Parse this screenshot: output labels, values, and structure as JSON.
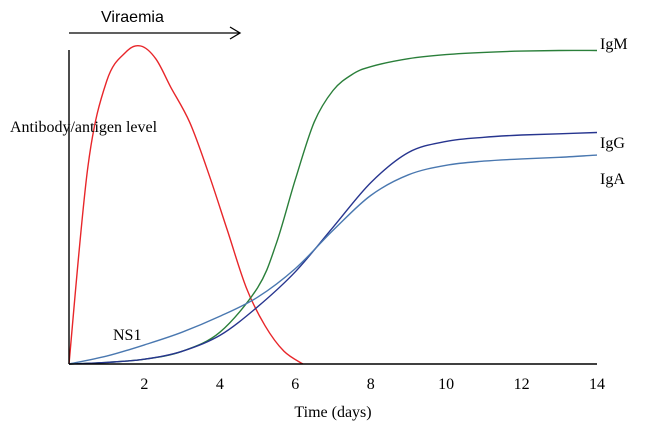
{
  "chart_data": {
    "type": "line",
    "title": "",
    "xlabel": "Time (days)",
    "ylabel": "Antibody/antigen level",
    "xlim": [
      0,
      14
    ],
    "ylim": [
      0,
      100
    ],
    "x_ticks": [
      "2",
      "4",
      "6",
      "8",
      "10",
      "12",
      "14"
    ],
    "grid": false,
    "legend": "labels at line ends",
    "annotation": {
      "text": "Viraemia",
      "from_day": 0,
      "to_day": 4.5
    },
    "series": [
      {
        "name": "NS1",
        "color": "#e8262a",
        "x": [
          0,
          0.5,
          1,
          1.5,
          1.9,
          2.3,
          2.7,
          3.2,
          3.7,
          4.2,
          4.7,
          5.2,
          5.7,
          6.2
        ],
        "y": [
          0,
          62,
          89,
          98,
          100,
          96,
          87,
          76,
          60,
          42,
          24,
          12,
          4,
          0
        ]
      },
      {
        "name": "IgM",
        "color": "#2a7f3a",
        "x": [
          0,
          1,
          2,
          3,
          4,
          5,
          5.5,
          6,
          6.5,
          7,
          7.5,
          8,
          9,
          10,
          11,
          12,
          13,
          14
        ],
        "y": [
          0,
          0.5,
          1.5,
          4,
          10,
          24,
          38,
          58,
          76,
          86,
          91,
          93.5,
          96,
          97.3,
          98,
          98.4,
          98.6,
          98.6
        ]
      },
      {
        "name": "IgG",
        "color": "#27358f",
        "x": [
          0,
          1,
          2,
          3,
          4,
          5,
          6,
          7,
          8,
          9,
          10,
          11,
          12,
          13,
          14
        ],
        "y": [
          0,
          0.5,
          1.5,
          4,
          9,
          18,
          29,
          43,
          57,
          66.5,
          70,
          71.3,
          72,
          72.4,
          72.8
        ]
      },
      {
        "name": "IgA",
        "color": "#4a78b0",
        "x": [
          0,
          1,
          2,
          3,
          4,
          5,
          6,
          7,
          8,
          9,
          10,
          11,
          12,
          13,
          14
        ],
        "y": [
          0,
          2.5,
          6,
          10,
          15,
          21,
          30,
          42,
          53,
          59.5,
          62.5,
          63.8,
          64.5,
          65,
          65.7
        ]
      }
    ]
  }
}
